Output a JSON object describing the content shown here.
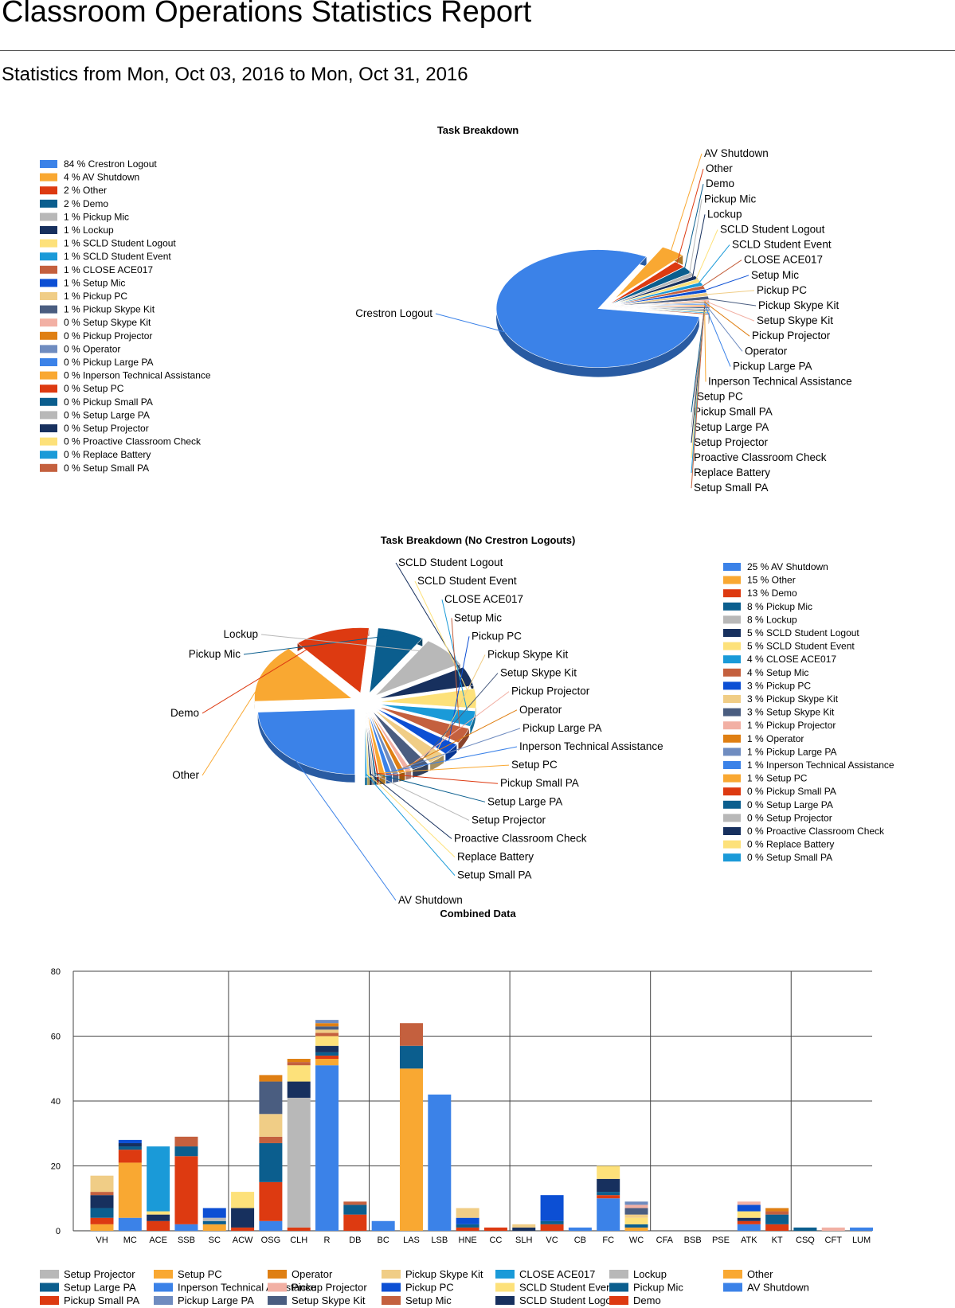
{
  "page": {
    "title": "Classroom Operations Statistics Report",
    "subtitle": "Statistics from Mon, Oct 03, 2016 to Mon, Oct 31, 2016"
  },
  "chart_data": [
    {
      "type": "pie",
      "title": "Task Breakdown",
      "legend_placement": "left",
      "slices": [
        {
          "label": "Crestron Logout",
          "percent": 84,
          "color": "#3b82e8"
        },
        {
          "label": "AV Shutdown",
          "percent": 4,
          "color": "#f9a832"
        },
        {
          "label": "Other",
          "percent": 2,
          "color": "#dd3a11"
        },
        {
          "label": "Demo",
          "percent": 2,
          "color": "#0b5e8e"
        },
        {
          "label": "Pickup Mic",
          "percent": 1,
          "color": "#b8b8b8"
        },
        {
          "label": "Lockup",
          "percent": 1,
          "color": "#17305e"
        },
        {
          "label": "SCLD Student Logout",
          "percent": 1,
          "color": "#fde17a"
        },
        {
          "label": "SCLD Student Event",
          "percent": 1,
          "color": "#1a9ad8"
        },
        {
          "label": "CLOSE ACE017",
          "percent": 1,
          "color": "#c4603e"
        },
        {
          "label": "Setup Mic",
          "percent": 1,
          "color": "#0c4fd4"
        },
        {
          "label": "Pickup PC",
          "percent": 1,
          "color": "#f0cd86"
        },
        {
          "label": "Pickup Skype Kit",
          "percent": 1,
          "color": "#4a5d80"
        },
        {
          "label": "Setup Skype Kit",
          "percent": 0,
          "color": "#f2b0a4"
        },
        {
          "label": "Pickup Projector",
          "percent": 0,
          "color": "#df7f13"
        },
        {
          "label": "Operator",
          "percent": 0,
          "color": "#6f8cc0"
        },
        {
          "label": "Pickup Large PA",
          "percent": 0,
          "color": "#3b82e8"
        },
        {
          "label": "Inperson Technical Assistance",
          "percent": 0,
          "color": "#f9a832"
        },
        {
          "label": "Setup PC",
          "percent": 0,
          "color": "#dd3a11"
        },
        {
          "label": "Pickup Small PA",
          "percent": 0,
          "color": "#0b5e8e"
        },
        {
          "label": "Setup Large PA",
          "percent": 0,
          "color": "#b8b8b8"
        },
        {
          "label": "Setup Projector",
          "percent": 0,
          "color": "#17305e"
        },
        {
          "label": "Proactive Classroom Check",
          "percent": 0,
          "color": "#fde17a"
        },
        {
          "label": "Replace Battery",
          "percent": 0,
          "color": "#1a9ad8"
        },
        {
          "label": "Setup Small PA",
          "percent": 0,
          "color": "#c4603e"
        }
      ]
    },
    {
      "type": "pie",
      "title": "Task Breakdown (No Crestron Logouts)",
      "legend_placement": "right",
      "slices": [
        {
          "label": "AV Shutdown",
          "percent": 25,
          "color": "#3b82e8"
        },
        {
          "label": "Other",
          "percent": 15,
          "color": "#f9a832"
        },
        {
          "label": "Demo",
          "percent": 13,
          "color": "#dd3a11"
        },
        {
          "label": "Pickup Mic",
          "percent": 8,
          "color": "#0b5e8e"
        },
        {
          "label": "Lockup",
          "percent": 8,
          "color": "#b8b8b8"
        },
        {
          "label": "SCLD Student Logout",
          "percent": 5,
          "color": "#17305e"
        },
        {
          "label": "SCLD Student Event",
          "percent": 5,
          "color": "#fde17a"
        },
        {
          "label": "CLOSE ACE017",
          "percent": 4,
          "color": "#1a9ad8"
        },
        {
          "label": "Setup Mic",
          "percent": 4,
          "color": "#c4603e"
        },
        {
          "label": "Pickup PC",
          "percent": 3,
          "color": "#0c4fd4"
        },
        {
          "label": "Pickup Skype Kit",
          "percent": 3,
          "color": "#f0cd86"
        },
        {
          "label": "Setup Skype Kit",
          "percent": 3,
          "color": "#4a5d80"
        },
        {
          "label": "Pickup Projector",
          "percent": 1,
          "color": "#f2b0a4"
        },
        {
          "label": "Operator",
          "percent": 1,
          "color": "#df7f13"
        },
        {
          "label": "Pickup Large PA",
          "percent": 1,
          "color": "#6f8cc0"
        },
        {
          "label": "Inperson Technical Assistance",
          "percent": 1,
          "color": "#3b82e8"
        },
        {
          "label": "Setup PC",
          "percent": 1,
          "color": "#f9a832"
        },
        {
          "label": "Pickup Small PA",
          "percent": 0,
          "color": "#dd3a11"
        },
        {
          "label": "Setup Large PA",
          "percent": 0,
          "color": "#0b5e8e"
        },
        {
          "label": "Setup Projector",
          "percent": 0,
          "color": "#b8b8b8"
        },
        {
          "label": "Proactive Classroom Check",
          "percent": 0,
          "color": "#17305e"
        },
        {
          "label": "Replace Battery",
          "percent": 0,
          "color": "#fde17a"
        },
        {
          "label": "Setup Small PA",
          "percent": 0,
          "color": "#1a9ad8"
        }
      ]
    },
    {
      "type": "bar",
      "stacked": true,
      "title": "Combined Data",
      "ylim": [
        0,
        80
      ],
      "yticks": [
        0,
        20,
        40,
        60,
        80
      ],
      "grid": true,
      "legend_placement": "bottom",
      "categories": [
        "VH",
        "MC",
        "ACE",
        "SSB",
        "SC",
        "ACW",
        "OSG",
        "CLH",
        "R",
        "DB",
        "BC",
        "LAS",
        "LSB",
        "HNE",
        "CC",
        "SLH",
        "VC",
        "CB",
        "FC",
        "WC",
        "CFA",
        "BSB",
        "PSE",
        "ATK",
        "KT",
        "CSQ",
        "CFT",
        "LUM"
      ],
      "series": [
        {
          "name": "AV Shutdown",
          "color": "#3b82e8",
          "values": [
            0,
            4,
            0,
            2,
            0,
            0,
            3,
            0,
            51,
            0,
            3,
            0,
            42,
            0,
            0,
            0,
            0,
            1,
            10,
            0,
            0,
            0,
            0,
            2,
            0,
            0,
            0,
            1
          ]
        },
        {
          "name": "Other",
          "color": "#f9a832",
          "values": [
            2,
            17,
            0,
            0,
            2,
            0,
            0,
            0,
            2,
            0,
            0,
            50,
            0,
            0,
            0,
            0,
            0,
            0,
            0,
            1,
            0,
            0,
            0,
            0,
            0,
            0,
            0,
            0
          ]
        },
        {
          "name": "Demo",
          "color": "#dd3a11",
          "values": [
            2,
            4,
            3,
            21,
            0,
            1,
            12,
            1,
            1,
            5,
            0,
            0,
            0,
            1,
            1,
            0,
            2,
            0,
            1,
            0,
            0,
            0,
            0,
            1,
            2,
            0,
            0,
            0
          ]
        },
        {
          "name": "Pickup Mic",
          "color": "#0b5e8e",
          "values": [
            3,
            1,
            0,
            3,
            1,
            0,
            12,
            0,
            1,
            3,
            0,
            7,
            0,
            1,
            0,
            0,
            1,
            0,
            1,
            1,
            0,
            0,
            0,
            0,
            3,
            1,
            0,
            0
          ]
        },
        {
          "name": "Lockup",
          "color": "#b8b8b8",
          "values": [
            0,
            0,
            0,
            0,
            1,
            0,
            0,
            40,
            0,
            0,
            0,
            0,
            0,
            0,
            0,
            0,
            0,
            0,
            0,
            0,
            0,
            0,
            0,
            0,
            0,
            0,
            0,
            0
          ]
        },
        {
          "name": "SCLD Student Logout",
          "color": "#17305e",
          "values": [
            4,
            1,
            2,
            0,
            0,
            6,
            0,
            5,
            2,
            0,
            0,
            0,
            0,
            0,
            0,
            1,
            0,
            0,
            4,
            0,
            0,
            0,
            0,
            1,
            0,
            0,
            0,
            0
          ]
        },
        {
          "name": "SCLD Student Event",
          "color": "#fde17a",
          "values": [
            0,
            0,
            1,
            0,
            0,
            5,
            0,
            5,
            3,
            0,
            0,
            0,
            0,
            0,
            0,
            0,
            0,
            0,
            4,
            2,
            0,
            0,
            0,
            2,
            0,
            0,
            0,
            0
          ]
        },
        {
          "name": "CLOSE ACE017",
          "color": "#1a9ad8",
          "values": [
            0,
            0,
            20,
            0,
            0,
            0,
            0,
            0,
            0,
            0,
            0,
            0,
            0,
            0,
            0,
            0,
            0,
            0,
            0,
            0,
            0,
            0,
            0,
            0,
            0,
            0,
            0,
            0
          ]
        },
        {
          "name": "Setup Mic",
          "color": "#c4603e",
          "values": [
            1,
            0,
            0,
            3,
            0,
            0,
            2,
            1,
            1,
            1,
            0,
            7,
            0,
            0,
            0,
            0,
            0,
            0,
            0,
            0,
            0,
            0,
            0,
            0,
            1,
            0,
            0,
            0
          ]
        },
        {
          "name": "Pickup PC",
          "color": "#0c4fd4",
          "values": [
            0,
            1,
            0,
            0,
            3,
            0,
            0,
            0,
            0,
            0,
            0,
            0,
            0,
            2,
            0,
            0,
            8,
            0,
            0,
            0,
            0,
            0,
            0,
            2,
            0,
            0,
            0,
            0
          ]
        },
        {
          "name": "Pickup Skype Kit",
          "color": "#f0cd86",
          "values": [
            5,
            0,
            0,
            0,
            0,
            0,
            7,
            0,
            1,
            0,
            0,
            0,
            0,
            3,
            0,
            1,
            0,
            0,
            0,
            1,
            0,
            0,
            0,
            0,
            0,
            0,
            0,
            0
          ]
        },
        {
          "name": "Setup Skype Kit",
          "color": "#4a5d80",
          "values": [
            0,
            0,
            0,
            0,
            0,
            0,
            10,
            0,
            1,
            0,
            0,
            0,
            0,
            0,
            0,
            0,
            0,
            0,
            0,
            2,
            0,
            0,
            0,
            0,
            0,
            0,
            0,
            0
          ]
        },
        {
          "name": "Pickup Projector",
          "color": "#f2b0a4",
          "values": [
            0,
            0,
            0,
            0,
            0,
            0,
            0,
            0,
            0,
            0,
            0,
            0,
            0,
            0,
            0,
            0,
            0,
            0,
            0,
            1,
            0,
            0,
            0,
            1,
            0,
            0,
            1,
            0
          ]
        },
        {
          "name": "Operator",
          "color": "#df7f13",
          "values": [
            0,
            0,
            0,
            0,
            0,
            0,
            2,
            1,
            1,
            0,
            0,
            0,
            0,
            0,
            0,
            0,
            0,
            0,
            0,
            0,
            0,
            0,
            0,
            0,
            1,
            0,
            0,
            0
          ]
        },
        {
          "name": "Pickup Large PA",
          "color": "#6f8cc0",
          "values": [
            0,
            0,
            0,
            0,
            0,
            0,
            0,
            0,
            1,
            0,
            0,
            0,
            0,
            0,
            0,
            0,
            0,
            0,
            0,
            1,
            0,
            0,
            0,
            0,
            0,
            0,
            0,
            0
          ]
        },
        {
          "name": "Inperson Technical Assistance",
          "color": "#3b82e8",
          "values": [
            0,
            0,
            0,
            0,
            0,
            0,
            0,
            0,
            0,
            0,
            0,
            0,
            0,
            0,
            0,
            0,
            0,
            0,
            0,
            0,
            0,
            0,
            0,
            0,
            0,
            0,
            0,
            0
          ]
        },
        {
          "name": "Setup PC",
          "color": "#f9a832",
          "values": [
            0,
            0,
            0,
            0,
            0,
            0,
            0,
            0,
            0,
            0,
            0,
            0,
            0,
            0,
            0,
            0,
            0,
            0,
            0,
            0,
            0,
            0,
            0,
            0,
            0,
            0,
            0,
            0
          ]
        },
        {
          "name": "Pickup Small PA",
          "color": "#dd3a11",
          "values": [
            0,
            0,
            0,
            0,
            0,
            0,
            0,
            0,
            0,
            0,
            0,
            0,
            0,
            0,
            0,
            0,
            0,
            0,
            0,
            0,
            0,
            0,
            0,
            0,
            0,
            0,
            0,
            0
          ]
        },
        {
          "name": "Setup Large PA",
          "color": "#0b5e8e",
          "values": [
            0,
            0,
            0,
            0,
            0,
            0,
            0,
            0,
            0,
            0,
            0,
            0,
            0,
            0,
            0,
            0,
            0,
            0,
            0,
            0,
            0,
            0,
            0,
            0,
            0,
            0,
            0,
            0
          ]
        },
        {
          "name": "Setup Projector",
          "color": "#b8b8b8",
          "values": [
            0,
            0,
            0,
            0,
            0,
            0,
            0,
            0,
            0,
            0,
            0,
            0,
            0,
            0,
            0,
            0,
            0,
            0,
            0,
            0,
            0,
            0,
            0,
            0,
            0,
            0,
            0,
            0
          ]
        },
        {
          "name": "Proactive Classroom Check",
          "color": "#17305e",
          "values": [
            0,
            0,
            0,
            0,
            0,
            0,
            0,
            0,
            0,
            0,
            0,
            0,
            0,
            0,
            0,
            0,
            0,
            0,
            0,
            0,
            0,
            0,
            0,
            0,
            0,
            0,
            0,
            0
          ]
        },
        {
          "name": "Replace Battery",
          "color": "#fde17a",
          "values": [
            0,
            0,
            0,
            0,
            0,
            0,
            0,
            0,
            0,
            0,
            0,
            0,
            0,
            0,
            0,
            0,
            0,
            0,
            0,
            0,
            0,
            0,
            0,
            0,
            0,
            0,
            0,
            0
          ]
        },
        {
          "name": "Setup Small PA",
          "color": "#1a9ad8",
          "values": [
            0,
            0,
            0,
            0,
            0,
            0,
            0,
            0,
            0,
            0,
            0,
            0,
            0,
            0,
            0,
            0,
            0,
            0,
            0,
            0,
            0,
            0,
            0,
            0,
            0,
            0,
            0,
            0
          ]
        }
      ],
      "legend_order": [
        "Setup Projector",
        "Setup PC",
        "Operator",
        "Pickup Skype Kit",
        "CLOSE ACE017",
        "Lockup",
        "Other",
        "Setup Large PA",
        "Inperson Technical Assistance",
        "Pickup Projector",
        "Pickup PC",
        "SCLD Student Event",
        "Pickup Mic",
        "AV Shutdown",
        "Pickup Small PA",
        "Pickup Large PA",
        "Setup Skype Kit",
        "Setup Mic",
        "SCLD Student Logout",
        "Demo"
      ]
    }
  ]
}
